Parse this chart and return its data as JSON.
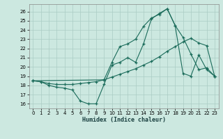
{
  "xlabel": "Humidex (Indice chaleur)",
  "background_color": "#cce8e0",
  "grid_color": "#aaccc4",
  "line_color": "#1a6b5a",
  "xlim": [
    -0.5,
    23.5
  ],
  "ylim": [
    15.5,
    26.8
  ],
  "yticks": [
    16,
    17,
    18,
    19,
    20,
    21,
    22,
    23,
    24,
    25,
    26
  ],
  "xticks": [
    0,
    1,
    2,
    3,
    4,
    5,
    6,
    7,
    8,
    9,
    10,
    11,
    12,
    13,
    14,
    15,
    16,
    17,
    18,
    19,
    20,
    21,
    22,
    23
  ],
  "series": [
    {
      "x": [
        0,
        1,
        2,
        3,
        4,
        5,
        6,
        7,
        8,
        9,
        10,
        11,
        12,
        13,
        14,
        15,
        16,
        17,
        18,
        19,
        20,
        21,
        22,
        23
      ],
      "y": [
        18.5,
        18.4,
        18.0,
        17.8,
        17.7,
        17.5,
        16.3,
        16.0,
        16.0,
        18.1,
        20.2,
        20.5,
        21.0,
        20.5,
        22.5,
        25.2,
        25.8,
        26.3,
        24.5,
        23.2,
        21.4,
        19.7,
        19.9,
        19.0
      ]
    },
    {
      "x": [
        0,
        1,
        2,
        3,
        4,
        5,
        6,
        7,
        8,
        9,
        10,
        11,
        12,
        13,
        14,
        15,
        16,
        17,
        18,
        19,
        20,
        21,
        22,
        23
      ],
      "y": [
        18.5,
        18.4,
        18.2,
        18.1,
        18.1,
        18.1,
        18.2,
        18.3,
        18.4,
        18.6,
        18.9,
        19.2,
        19.5,
        19.8,
        20.2,
        20.6,
        21.1,
        21.7,
        22.2,
        22.7,
        23.1,
        22.6,
        22.3,
        19.0
      ]
    },
    {
      "x": [
        0,
        9,
        10,
        11,
        12,
        13,
        14,
        15,
        16,
        17,
        18,
        19,
        20,
        21,
        22,
        23
      ],
      "y": [
        18.5,
        18.6,
        20.5,
        22.2,
        22.5,
        23.0,
        24.4,
        25.3,
        25.7,
        26.3,
        24.5,
        19.3,
        19.0,
        21.3,
        19.7,
        19.0
      ]
    }
  ]
}
